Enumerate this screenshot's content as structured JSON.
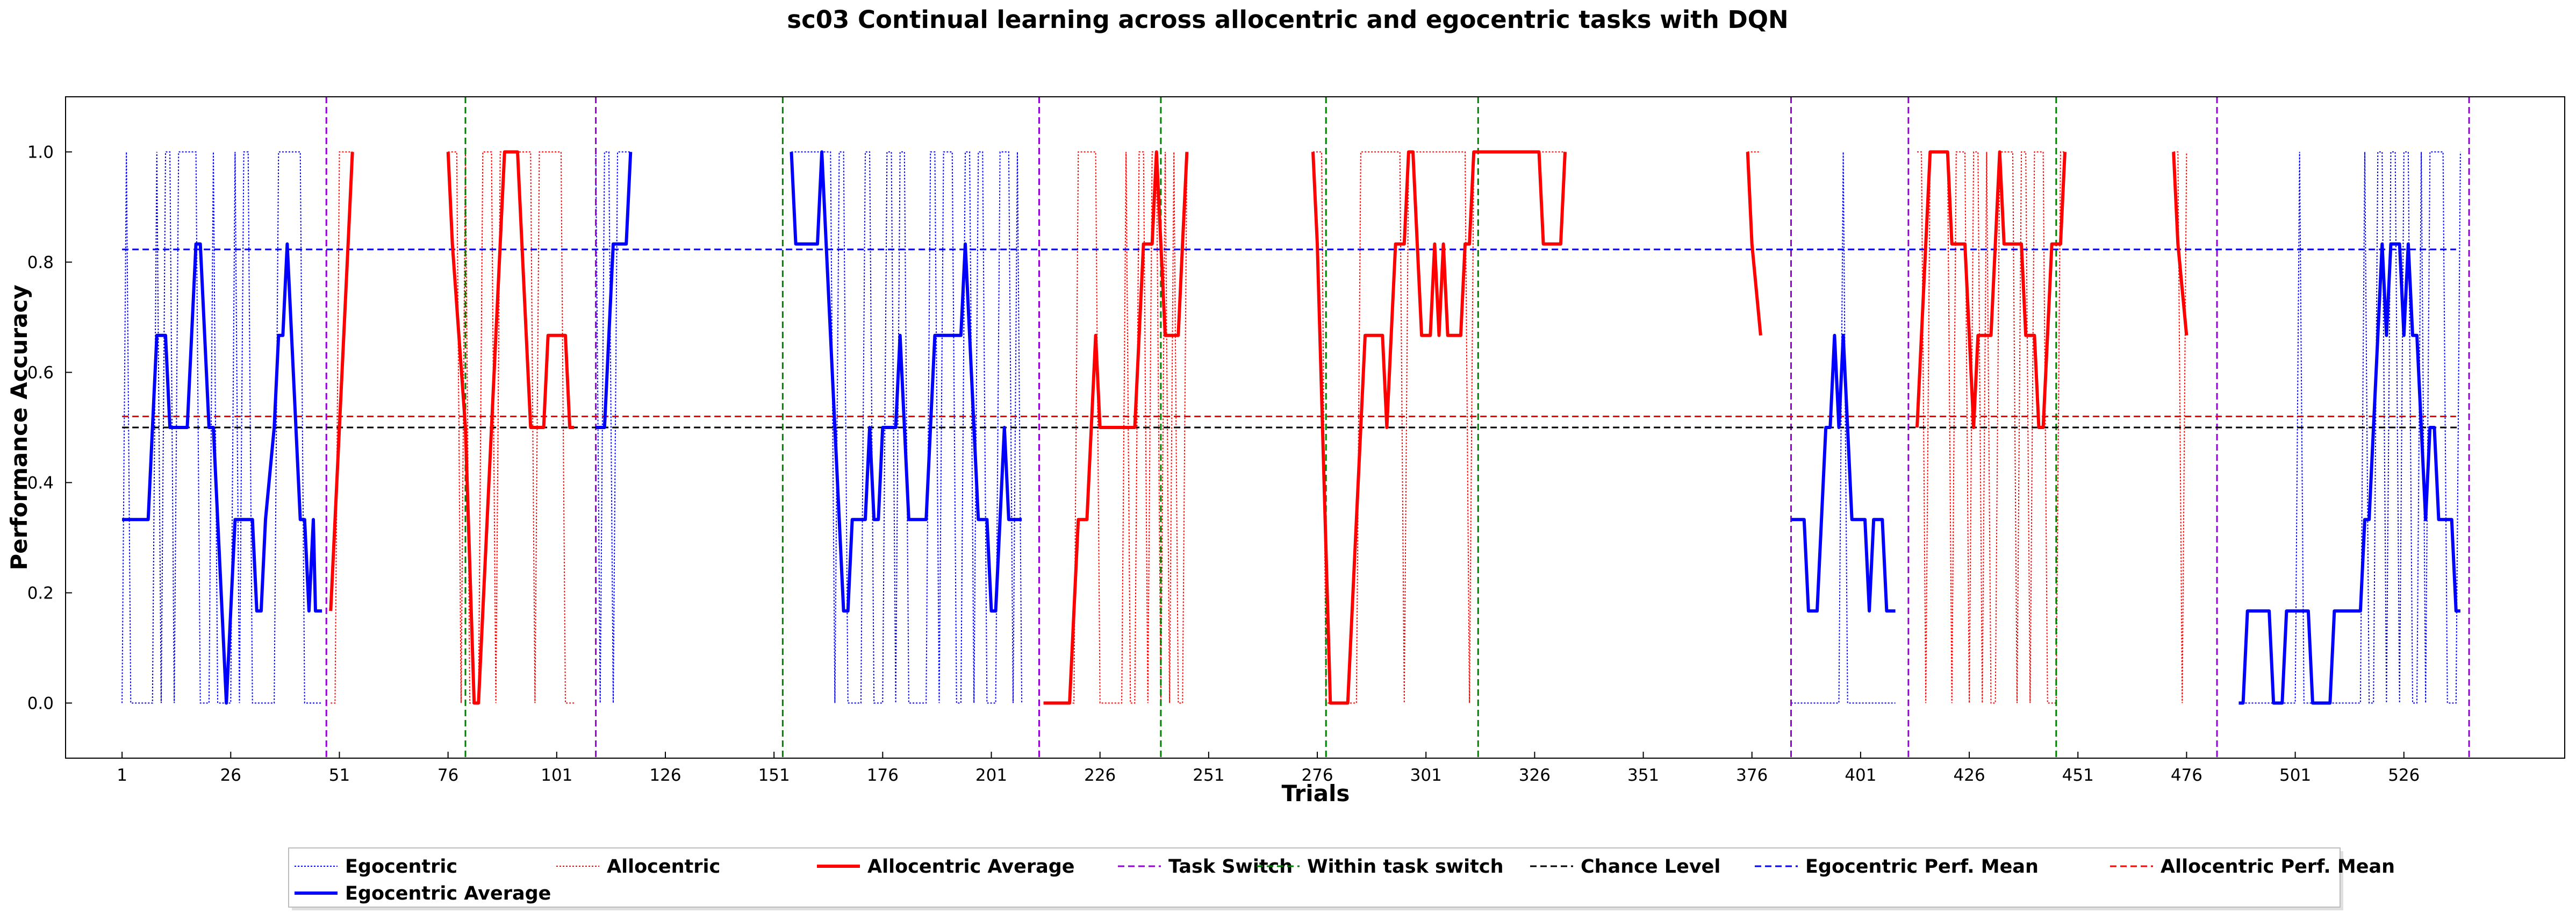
{
  "chart_data": {
    "type": "line",
    "title": "sc03 Continual learning across allocentric and egocentric tasks with DQN",
    "xlabel": "Trials",
    "ylabel": "Performance Accuracy",
    "xlim": [
      -12,
      563
    ],
    "ylim": [
      -0.1,
      1.1
    ],
    "xticks": [
      1,
      26,
      51,
      76,
      101,
      126,
      151,
      176,
      201,
      226,
      251,
      276,
      301,
      326,
      351,
      376,
      401,
      426,
      451,
      476,
      501,
      526
    ],
    "yticks": [
      0.0,
      0.2,
      0.4,
      0.6,
      0.8,
      1.0
    ],
    "ytick_labels": [
      "0.0",
      "0.2",
      "0.4",
      "0.6",
      "0.8",
      "1.0"
    ],
    "grid": false,
    "legend_position": "bottom-center",
    "colors": {
      "egocentric": "#0000ff",
      "allocentric": "#ff0000",
      "task_switch": "#9400d3",
      "within_task_switch": "#008000",
      "chance": "#000000"
    },
    "legend": [
      {
        "label": "Egocentric",
        "color": "#0000ff",
        "style": "dotted-thin"
      },
      {
        "label": "Allocentric",
        "color": "#ff0000",
        "style": "dotted-thin"
      },
      {
        "label": "Allocentric Average",
        "color": "#ff0000",
        "style": "solid-thick"
      },
      {
        "label": "Task Switch",
        "color": "#9400d3",
        "style": "dashed"
      },
      {
        "label": "Within task switch",
        "color": "#008000",
        "style": "dashed"
      },
      {
        "label": "Chance Level",
        "color": "#000000",
        "style": "dashed"
      },
      {
        "label": "Egocentric Perf. Mean",
        "color": "#0000ff",
        "style": "dashed"
      },
      {
        "label": "Allocentric Perf. Mean",
        "color": "#ff0000",
        "style": "dashed"
      },
      {
        "label": "Egocentric Average",
        "color": "#0000ff",
        "style": "solid-thick"
      }
    ],
    "task_switch_x": [
      48,
      110,
      212,
      385,
      412,
      483,
      541
    ],
    "within_task_switch_x": [
      80,
      153,
      240,
      278,
      313,
      446
    ],
    "chance_level": {
      "y": 0.5,
      "x_range": [
        1,
        539
      ]
    },
    "egocentric_perf_mean": {
      "y": 0.823,
      "x_range": [
        1,
        538
      ]
    },
    "allocentric_perf_mean": {
      "y": 0.52,
      "x_range": [
        1,
        538
      ]
    },
    "series": [
      {
        "name": "Egocentric Average",
        "color": "#0000ff",
        "points": [
          [
            1,
            0.333
          ],
          [
            7,
            0.333
          ],
          [
            8,
            0.5
          ],
          [
            9,
            0.667
          ],
          [
            11,
            0.667
          ],
          [
            12,
            0.5
          ],
          [
            16,
            0.5
          ],
          [
            18,
            0.833
          ],
          [
            19,
            0.833
          ],
          [
            20,
            0.667
          ],
          [
            21,
            0.5
          ],
          [
            22,
            0.5
          ],
          [
            23,
            0.333
          ],
          [
            24,
            0.167
          ],
          [
            25,
            0.0
          ],
          [
            26,
            0.167
          ],
          [
            27,
            0.333
          ],
          [
            31,
            0.333
          ],
          [
            32,
            0.167
          ],
          [
            33,
            0.167
          ],
          [
            34,
            0.333
          ],
          [
            36,
            0.5
          ],
          [
            37,
            0.667
          ],
          [
            38,
            0.667
          ],
          [
            39,
            0.833
          ],
          [
            40,
            0.667
          ],
          [
            41,
            0.5
          ],
          [
            42,
            0.333
          ],
          [
            43,
            0.333
          ],
          [
            44,
            0.167
          ],
          [
            45,
            0.333
          ],
          [
            45.5,
            0.167
          ],
          [
            47,
            0.167
          ],
          [
            110,
            0.5
          ],
          [
            112,
            0.5
          ],
          [
            113,
            0.667
          ],
          [
            114,
            0.833
          ],
          [
            117,
            0.833
          ],
          [
            118,
            1.0
          ],
          [
            155,
            1.0
          ],
          [
            156,
            0.833
          ],
          [
            161,
            0.833
          ],
          [
            162,
            1.0
          ],
          [
            163,
            0.833
          ],
          [
            165,
            0.5
          ],
          [
            167,
            0.167
          ],
          [
            168,
            0.167
          ],
          [
            169,
            0.333
          ],
          [
            172,
            0.333
          ],
          [
            173,
            0.5
          ],
          [
            174,
            0.333
          ],
          [
            175,
            0.333
          ],
          [
            176,
            0.5
          ],
          [
            179,
            0.5
          ],
          [
            180,
            0.667
          ],
          [
            181,
            0.5
          ],
          [
            182,
            0.333
          ],
          [
            186,
            0.333
          ],
          [
            187,
            0.5
          ],
          [
            188,
            0.667
          ],
          [
            194,
            0.667
          ],
          [
            195,
            0.833
          ],
          [
            196,
            0.667
          ],
          [
            197,
            0.5
          ],
          [
            198,
            0.333
          ],
          [
            200,
            0.333
          ],
          [
            201,
            0.167
          ],
          [
            202,
            0.167
          ],
          [
            203,
            0.333
          ],
          [
            204,
            0.5
          ],
          [
            205,
            0.333
          ],
          [
            208,
            0.333
          ],
          [
            385,
            0.333
          ],
          [
            388,
            0.333
          ],
          [
            389,
            0.167
          ],
          [
            391,
            0.167
          ],
          [
            392,
            0.333
          ],
          [
            393,
            0.5
          ],
          [
            394,
            0.5
          ],
          [
            395,
            0.667
          ],
          [
            396,
            0.5
          ],
          [
            397,
            0.667
          ],
          [
            398,
            0.5
          ],
          [
            399,
            0.333
          ],
          [
            402,
            0.333
          ],
          [
            403,
            0.167
          ],
          [
            404,
            0.333
          ],
          [
            406,
            0.333
          ],
          [
            407,
            0.167
          ],
          [
            409,
            0.167
          ],
          [
            488,
            0.0
          ],
          [
            489,
            0.0
          ],
          [
            490,
            0.167
          ],
          [
            495,
            0.167
          ],
          [
            496,
            0.0
          ],
          [
            498,
            0.0
          ],
          [
            499,
            0.167
          ],
          [
            504,
            0.167
          ],
          [
            505,
            0.0
          ],
          [
            509,
            0.0
          ],
          [
            510,
            0.167
          ],
          [
            516,
            0.167
          ],
          [
            517,
            0.333
          ],
          [
            518,
            0.333
          ],
          [
            519,
            0.5
          ],
          [
            520,
            0.667
          ],
          [
            521,
            0.833
          ],
          [
            522,
            0.667
          ],
          [
            523,
            0.833
          ],
          [
            525,
            0.833
          ],
          [
            526,
            0.667
          ],
          [
            527,
            0.833
          ],
          [
            528,
            0.667
          ],
          [
            529,
            0.667
          ],
          [
            530,
            0.5
          ],
          [
            531,
            0.333
          ],
          [
            532,
            0.5
          ],
          [
            533,
            0.5
          ],
          [
            534,
            0.333
          ],
          [
            537,
            0.333
          ],
          [
            538,
            0.167
          ],
          [
            539,
            0.167
          ]
        ]
      },
      {
        "name": "Allocentric Average",
        "color": "#ff0000",
        "points": [
          [
            49,
            0.167
          ],
          [
            50,
            0.333
          ],
          [
            53,
            0.833
          ],
          [
            54,
            1.0
          ],
          [
            76,
            1.0
          ],
          [
            77,
            0.833
          ],
          [
            80,
            0.5
          ],
          [
            82,
            0.0
          ],
          [
            83,
            0.0
          ],
          [
            89,
            1.0
          ],
          [
            92,
            1.0
          ],
          [
            93,
            0.833
          ],
          [
            95,
            0.5
          ],
          [
            98,
            0.5
          ],
          [
            99,
            0.667
          ],
          [
            103,
            0.667
          ],
          [
            104,
            0.5
          ],
          [
            105,
            0.5
          ],
          [
            213,
            0.0
          ],
          [
            219,
            0.0
          ],
          [
            221,
            0.333
          ],
          [
            223,
            0.333
          ],
          [
            224,
            0.5
          ],
          [
            225,
            0.667
          ],
          [
            226,
            0.5
          ],
          [
            234,
            0.5
          ],
          [
            236,
            0.833
          ],
          [
            238,
            0.833
          ],
          [
            239,
            1.0
          ],
          [
            240,
            0.833
          ],
          [
            241,
            0.667
          ],
          [
            244,
            0.667
          ],
          [
            245,
            0.833
          ],
          [
            246,
            1.0
          ],
          [
            275,
            1.0
          ],
          [
            276,
            0.833
          ],
          [
            279,
            0.0
          ],
          [
            283,
            0.0
          ],
          [
            287,
            0.667
          ],
          [
            291,
            0.667
          ],
          [
            292,
            0.5
          ],
          [
            293,
            0.667
          ],
          [
            294,
            0.833
          ],
          [
            296,
            0.833
          ],
          [
            297,
            1.0
          ],
          [
            298,
            1.0
          ],
          [
            299,
            0.833
          ],
          [
            300,
            0.667
          ],
          [
            302,
            0.667
          ],
          [
            303,
            0.833
          ],
          [
            304,
            0.667
          ],
          [
            305,
            0.833
          ],
          [
            306,
            0.667
          ],
          [
            309,
            0.667
          ],
          [
            310,
            0.833
          ],
          [
            311,
            0.833
          ],
          [
            312,
            1.0
          ],
          [
            327,
            1.0
          ],
          [
            328,
            0.833
          ],
          [
            332,
            0.833
          ],
          [
            333,
            1.0
          ],
          [
            375,
            1.0
          ],
          [
            376,
            0.833
          ],
          [
            378,
            0.667
          ],
          [
            414,
            0.5
          ],
          [
            416,
            0.833
          ],
          [
            417,
            1.0
          ],
          [
            421,
            1.0
          ],
          [
            422,
            0.833
          ],
          [
            425,
            0.833
          ],
          [
            426,
            0.667
          ],
          [
            427,
            0.5
          ],
          [
            428,
            0.667
          ],
          [
            431,
            0.667
          ],
          [
            432,
            0.833
          ],
          [
            433,
            1.0
          ],
          [
            434,
            0.833
          ],
          [
            438,
            0.833
          ],
          [
            439,
            0.667
          ],
          [
            441,
            0.667
          ],
          [
            442,
            0.5
          ],
          [
            443,
            0.5
          ],
          [
            444,
            0.667
          ],
          [
            445,
            0.833
          ],
          [
            447,
            0.833
          ],
          [
            448,
            1.0
          ],
          [
            473,
            1.0
          ],
          [
            474,
            0.833
          ],
          [
            476,
            0.667
          ]
        ]
      }
    ]
  }
}
